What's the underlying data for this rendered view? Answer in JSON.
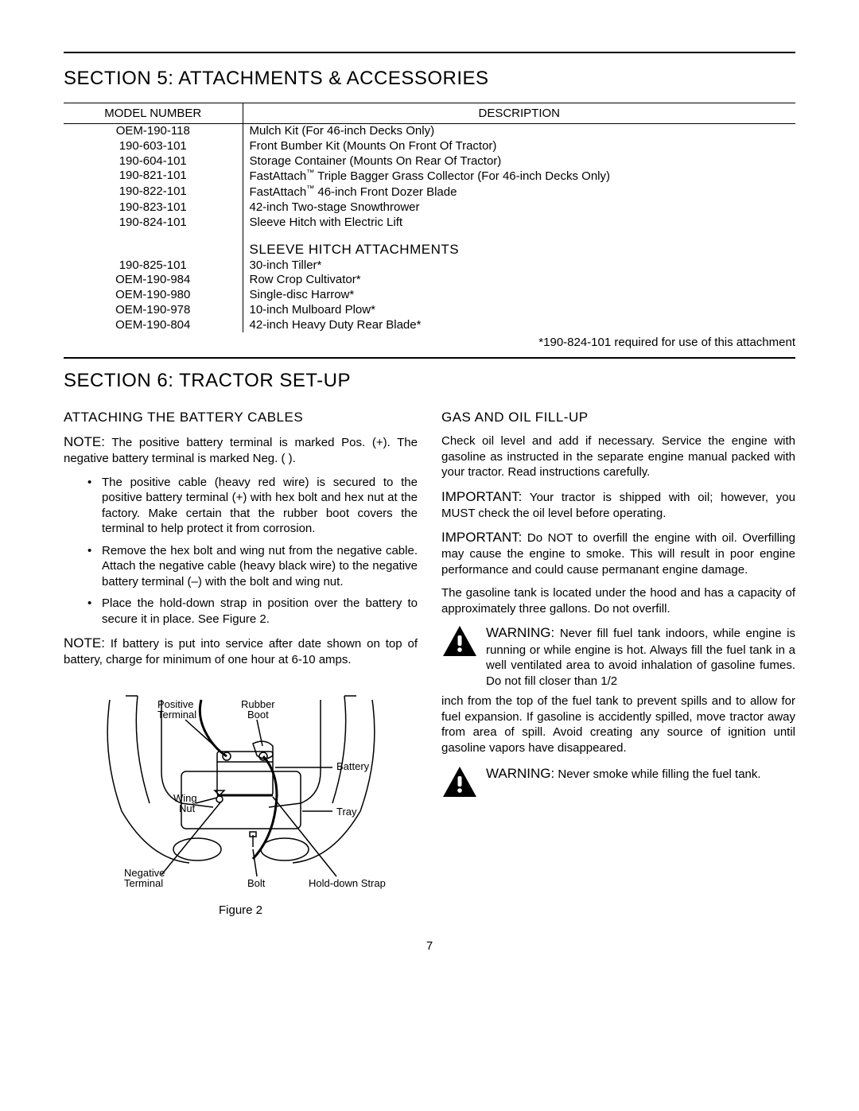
{
  "page_number": "7",
  "section5": {
    "title": "SECTION 5: ATTACHMENTS & ACCESSORIES",
    "headers": {
      "model": "MODEL NUMBER",
      "desc": "DESCRIPTION"
    },
    "rows": [
      {
        "model": "OEM-190-118",
        "desc": "Mulch Kit (For 46-inch Decks Only)"
      },
      {
        "model": "190-603-101",
        "desc": "Front Bumber Kit (Mounts On Front Of Tractor)"
      },
      {
        "model": "190-604-101",
        "desc": "Storage Container (Mounts On Rear Of Tractor)"
      },
      {
        "model": "190-821-101",
        "desc": "FastAttach™ Triple Bagger Grass Collector (For 46-inch Decks Only)"
      },
      {
        "model": "190-822-101",
        "desc": "FastAttach™ 46-inch Front Dozer Blade"
      },
      {
        "model": "190-823-101",
        "desc": "42-inch Two-stage Snowthrower"
      },
      {
        "model": "190-824-101",
        "desc": "Sleeve Hitch with Electric Lift"
      }
    ],
    "subhead": "SLEEVE HITCH ATTACHMENTS",
    "rows2": [
      {
        "model": "190-825-101",
        "desc": "30-inch Tiller*"
      },
      {
        "model": "OEM-190-984",
        "desc": "Row Crop Cultivator*"
      },
      {
        "model": "OEM-190-980",
        "desc": "Single-disc Harrow*"
      },
      {
        "model": "OEM-190-978",
        "desc": "10-inch Mulboard Plow*"
      },
      {
        "model": "OEM-190-804",
        "desc": "42-inch Heavy Duty Rear Blade*"
      }
    ],
    "footnote": "*190-824-101 required for use of this attachment"
  },
  "section6": {
    "title": "SECTION 6: TRACTOR SET-UP",
    "left": {
      "heading": "ATTACHING THE BATTERY CABLES",
      "note1_lead": "NOTE:",
      "note1_text": " The positive battery terminal is marked Pos. (+). The negative battery terminal is marked Neg. ( ).",
      "bullets": [
        "The positive cable (heavy red wire) is secured to the positive battery terminal (+) with hex bolt and hex nut at the factory. Make certain that the rubber boot covers the terminal to help protect it from corrosion.",
        "Remove the hex bolt and wing nut from the negative cable. Attach the negative cable (heavy black wire) to the negative battery terminal (–) with the bolt and wing nut.",
        "Place the hold-down strap in position over the battery to secure it in place. See Figure 2."
      ],
      "note2_lead": "NOTE:",
      "note2_text": " If battery is put into service after date shown on top of battery, charge for minimum of one hour at 6-10 amps.",
      "figure": {
        "caption": "Figure 2",
        "labels": {
          "positive_terminal": "Positive\nTerminal",
          "rubber_boot": "Rubber\nBoot",
          "battery": "Battery",
          "wing_nut": "Wing\nNut",
          "tray": "Tray",
          "negative_terminal": "Negative\nTerminal",
          "bolt": "Bolt",
          "hold_down_strap": "Hold-down Strap"
        },
        "stroke": "#000000",
        "fill": "#ffffff"
      }
    },
    "right": {
      "heading": "GAS AND OIL FILL-UP",
      "p1": "Check oil level and add if necessary. Service the engine with gasoline as instructed in the separate engine manual packed with your tractor. Read instructions carefully.",
      "imp1_lead": "IMPORTANT:",
      "imp1_text": " Your tractor is shipped with oil; however, you MUST check the oil level before operating.",
      "imp2_lead": "IMPORTANT:",
      "imp2_text": " Do NOT to overfill the engine with oil. Overfilling may cause the engine to smoke. This will result in poor engine performance and could cause permanant engine damage.",
      "p2": "The gasoline tank is located under the hood and has a capacity of approximately three gallons. Do not overfill.",
      "warn1_lead": "WARNING:",
      "warn1_text": " Never fill fuel tank indoors, while engine is running or while engine is hot. Always fill the fuel tank in a well ventilated area to avoid inhalation of gasoline fumes. Do not fill closer than 1/2",
      "warn1_cont": "inch from the top of the fuel tank to prevent spills and to allow for fuel expansion. If gasoline is accidently spilled, move tractor away from area of spill. Avoid creating any source of ignition until gasoline vapors have disappeared.",
      "warn2_lead": "WARNING:",
      "warn2_text": " Never smoke while filling the fuel tank."
    }
  }
}
